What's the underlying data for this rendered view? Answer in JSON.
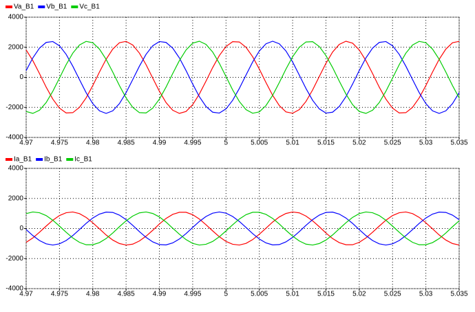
{
  "chart_data": [
    {
      "type": "line",
      "x": [
        4.97,
        4.971,
        4.972,
        4.973,
        4.974,
        4.975,
        4.976,
        4.977,
        4.978,
        4.979,
        4.98,
        4.981,
        4.982,
        4.983,
        4.984,
        4.985,
        4.986,
        4.987,
        4.988,
        4.989,
        4.99,
        4.991,
        4.992,
        4.993,
        4.994,
        4.995,
        4.996,
        4.997,
        4.998,
        4.999,
        5.0,
        5.001,
        5.002,
        5.003,
        5.004,
        5.005,
        5.006,
        5.007,
        5.008,
        5.009,
        5.01,
        5.011,
        5.012,
        5.013,
        5.014,
        5.015,
        5.016,
        5.017,
        5.018,
        5.019,
        5.02,
        5.021,
        5.022,
        5.023,
        5.024,
        5.025,
        5.026,
        5.027,
        5.028,
        5.029,
        5.03,
        5.031,
        5.032,
        5.033,
        5.034,
        5.035
      ],
      "series": [
        {
          "name": "Va_B1",
          "color": "#ff0000",
          "values": [
            1820,
            1110,
            250,
            -650,
            -1450,
            -2050,
            -2370,
            -2350,
            -2000,
            -1370,
            -550,
            350,
            1200,
            1880,
            2300,
            2390,
            2150,
            1610,
            840,
            -50,
            -930,
            -1680,
            -2190,
            -2400,
            -2270,
            -1820,
            -1110,
            -250,
            650,
            1450,
            2050,
            2370,
            2350,
            2000,
            1370,
            550,
            -350,
            -1200,
            -1880,
            -2300,
            -2390,
            -2150,
            -1610,
            -840,
            50,
            930,
            1680,
            2190,
            2400,
            2270,
            1820,
            1110,
            250,
            -650,
            -1450,
            -2050,
            -2370,
            -2350,
            -2000,
            -1370,
            -550,
            350,
            1200,
            1880,
            2300,
            2390
          ]
        },
        {
          "name": "Vb_B1",
          "color": "#0000ff",
          "values": [
            450,
            1290,
            1940,
            2320,
            2380,
            2100,
            1530,
            740,
            -150,
            -1020,
            -1750,
            -2230,
            -2400,
            -2230,
            -1750,
            -1020,
            -150,
            740,
            1530,
            2100,
            2380,
            2320,
            1940,
            1290,
            450,
            -450,
            -1290,
            -1940,
            -2320,
            -2380,
            -2100,
            -1530,
            -740,
            150,
            1020,
            1750,
            2230,
            2400,
            2230,
            1750,
            1020,
            150,
            -740,
            -1530,
            -2100,
            -2380,
            -2320,
            -1940,
            -1290,
            -450,
            450,
            1290,
            1940,
            2320,
            2380,
            2100,
            1530,
            740,
            -150,
            -1020,
            -1750,
            -2230,
            -2400,
            -2230,
            -1750,
            -1020
          ]
        },
        {
          "name": "Vc_B1",
          "color": "#00cc00",
          "values": [
            -2270,
            -2400,
            -2190,
            -1680,
            -930,
            -50,
            840,
            1610,
            2150,
            2390,
            2300,
            1880,
            1200,
            350,
            -550,
            -1370,
            -2000,
            -2350,
            -2370,
            -2050,
            -1450,
            -650,
            250,
            1110,
            1820,
            2270,
            2400,
            2190,
            1680,
            930,
            50,
            -840,
            -1610,
            -2150,
            -2390,
            -2300,
            -1880,
            -1200,
            -350,
            550,
            1370,
            2000,
            2350,
            2370,
            2050,
            1450,
            650,
            -250,
            -1110,
            -1820,
            -2270,
            -2400,
            -2190,
            -1680,
            -930,
            -50,
            840,
            1610,
            2150,
            2390,
            2300,
            1880,
            1200,
            350,
            -550,
            -1370
          ]
        }
      ],
      "xlim": [
        4.97,
        5.035
      ],
      "xticks": [
        4.97,
        4.975,
        4.98,
        4.985,
        4.99,
        4.995,
        5,
        5.005,
        5.01,
        5.015,
        5.02,
        5.025,
        5.03,
        5.035
      ],
      "ylim": [
        -4000,
        4000
      ],
      "yticks": [
        -4000,
        -2000,
        0,
        2000,
        4000
      ],
      "grid": true
    },
    {
      "type": "line",
      "x": [
        4.97,
        4.971,
        4.972,
        4.973,
        4.974,
        4.975,
        4.976,
        4.977,
        4.978,
        4.979,
        4.98,
        4.981,
        4.982,
        4.983,
        4.984,
        4.985,
        4.986,
        4.987,
        4.988,
        4.989,
        4.99,
        4.991,
        4.992,
        4.993,
        4.994,
        4.995,
        4.996,
        4.997,
        4.998,
        4.999,
        5.0,
        5.001,
        5.002,
        5.003,
        5.004,
        5.005,
        5.006,
        5.007,
        5.008,
        5.009,
        5.01,
        5.011,
        5.012,
        5.013,
        5.014,
        5.015,
        5.016,
        5.017,
        5.018,
        5.019,
        5.02,
        5.021,
        5.022,
        5.023,
        5.024,
        5.025,
        5.026,
        5.027,
        5.028,
        5.029,
        5.03,
        5.031,
        5.032,
        5.033,
        5.034,
        5.035
      ],
      "series": [
        {
          "name": "Ia_B1",
          "color": "#ff0000",
          "values": [
            -920,
            -630,
            -250,
            160,
            550,
            860,
            1050,
            1100,
            990,
            740,
            380,
            -20,
            -430,
            -770,
            -1000,
            -1100,
            -1040,
            -830,
            -510,
            -120,
            300,
            670,
            940,
            1080,
            1080,
            920,
            630,
            250,
            -160,
            -550,
            -860,
            -1050,
            -1100,
            -990,
            -740,
            -380,
            20,
            430,
            770,
            1000,
            1100,
            1040,
            830,
            510,
            120,
            -300,
            -670,
            -940,
            -1080,
            -1080,
            -920,
            -630,
            -250,
            160,
            550,
            860,
            1050,
            1100,
            990,
            740,
            380,
            -20,
            -430,
            -770,
            -1000,
            -1100
          ]
        },
        {
          "name": "Ib_B1",
          "color": "#0000ff",
          "values": [
            -70,
            -470,
            -800,
            -1020,
            -1100,
            -1020,
            -800,
            -470,
            -70,
            340,
            700,
            960,
            1090,
            1070,
            890,
            590,
            210,
            -210,
            -590,
            -890,
            -1070,
            -1090,
            -960,
            -700,
            -340,
            70,
            470,
            800,
            1020,
            1100,
            1020,
            800,
            470,
            70,
            -340,
            -700,
            -960,
            -1090,
            -1070,
            -890,
            -590,
            -210,
            210,
            590,
            890,
            1070,
            1090,
            960,
            700,
            340,
            -70,
            -470,
            -800,
            -1020,
            -1100,
            -1020,
            -800,
            -470,
            -70,
            340,
            700,
            960,
            1090,
            1070,
            890,
            590
          ]
        },
        {
          "name": "Ic_B1",
          "color": "#00cc00",
          "values": [
            990,
            1100,
            1050,
            860,
            550,
            160,
            -250,
            -630,
            -920,
            -1080,
            -1080,
            -940,
            -670,
            -300,
            120,
            510,
            830,
            1040,
            1100,
            1000,
            770,
            430,
            20,
            -380,
            -740,
            -990,
            -1100,
            -1050,
            -860,
            -550,
            -160,
            250,
            630,
            920,
            1080,
            1080,
            940,
            670,
            300,
            -120,
            -510,
            -830,
            -1040,
            -1100,
            -1000,
            -770,
            -430,
            -20,
            380,
            740,
            990,
            1100,
            1050,
            860,
            550,
            160,
            -250,
            -630,
            -920,
            -1080,
            -1080,
            -940,
            -670,
            -300,
            120,
            510
          ]
        }
      ],
      "xlim": [
        4.97,
        5.035
      ],
      "xticks": [
        4.97,
        4.975,
        4.98,
        4.985,
        4.99,
        4.995,
        5,
        5.005,
        5.01,
        5.015,
        5.02,
        5.025,
        5.03,
        5.035
      ],
      "ylim": [
        -4000,
        4000
      ],
      "yticks": [
        -4000,
        -2000,
        0,
        2000,
        4000
      ],
      "grid": true
    }
  ]
}
